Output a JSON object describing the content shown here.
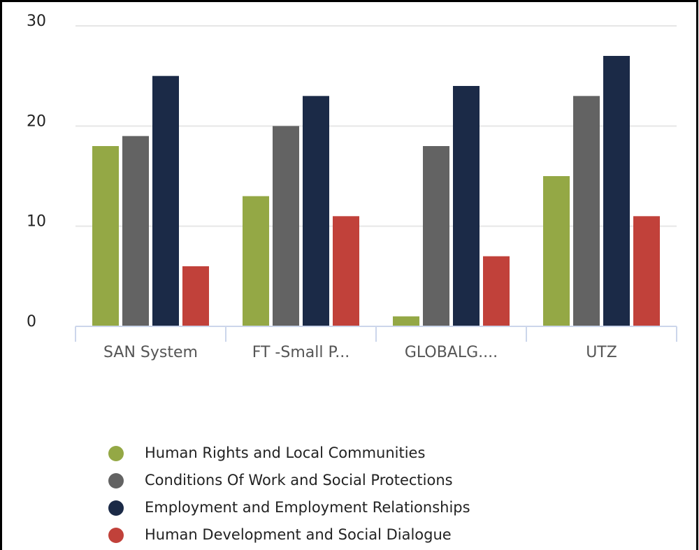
{
  "chart_data": {
    "type": "bar",
    "categories": [
      "SAN System",
      "FT -Small P...",
      "GLOBALG....",
      "UTZ"
    ],
    "series": [
      {
        "name": "Human Rights and Local Communities",
        "color": "#94a845",
        "values": [
          18,
          13,
          1,
          15
        ]
      },
      {
        "name": "Conditions Of Work and Social Protections",
        "color": "#636363",
        "values": [
          19,
          20,
          18,
          23
        ]
      },
      {
        "name": "Employment and Employment Relationships",
        "color": "#1b2a47",
        "values": [
          25,
          23,
          24,
          27
        ]
      },
      {
        "name": "Human Development and Social Dialogue",
        "color": "#c1413a",
        "values": [
          6,
          11,
          7,
          11
        ]
      }
    ],
    "ylim": [
      0,
      30
    ],
    "yticks": [
      0,
      10,
      20,
      30
    ],
    "grid": true,
    "legend": "bottom"
  }
}
